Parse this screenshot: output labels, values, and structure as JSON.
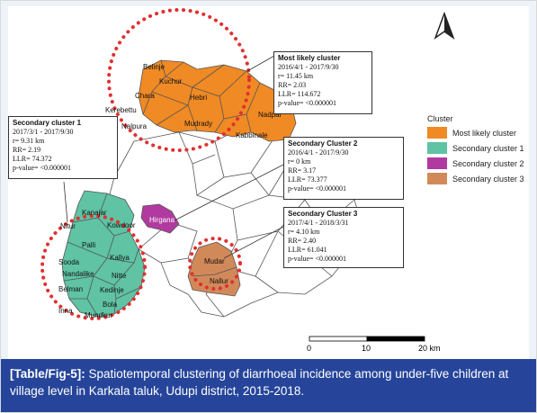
{
  "clusters": {
    "most_likely": {
      "title": "Most likely cluster",
      "period": "2016/4/1 - 2017/9/30",
      "radius": "r= 11.45 km",
      "rr": "RR= 2.03",
      "llr": "LLR= 114.672",
      "pvalue": "p-value= <0.000001"
    },
    "secondary_1": {
      "title": "Secondary cluster 1",
      "period": "2017/3/1 - 2017/9/30",
      "radius": "r= 9.31 km",
      "rr": "RR= 2.19",
      "llr": "LLR= 74.372",
      "pvalue": "p-value= <0.000001"
    },
    "secondary_2": {
      "title": "Secondary Cluster 2",
      "period": "2016/4/1 - 2017/9/30",
      "radius": "r= 0 km",
      "rr": "RR= 3.17",
      "llr": "LLR= 73.377",
      "pvalue": "p-value= <0.000001"
    },
    "secondary_3": {
      "title": "Secondary Cluster 3",
      "period": "2017/4/1 - 2018/3/31",
      "radius": "r= 4.10 km",
      "rr": "RR= 2.40",
      "llr": "LLR= 61.041",
      "pvalue": "p-value= <0.000001"
    }
  },
  "legend": {
    "title": "Cluster",
    "items": [
      {
        "label": "Most likely cluster",
        "color": "#f08a24"
      },
      {
        "label": "Secondary cluster 1",
        "color": "#5fc3a4"
      },
      {
        "label": "Secondary cluster 2",
        "color": "#b13aa0"
      },
      {
        "label": "Secondary cluster 3",
        "color": "#d2895a"
      }
    ]
  },
  "villages": {
    "most_likely": [
      "Belinje",
      "Kuchur",
      "Chara",
      "Hebri",
      "Kerebettu",
      "Nadpal",
      "Mudrady",
      "Nalpura",
      "Kabbinale"
    ],
    "secondary_1": [
      "Kanajar",
      "Nitur",
      "Kowdoor",
      "Palli",
      "Sooda",
      "Kallya",
      "Nandalike",
      "Nitte",
      "Belman",
      "Kedinje",
      "Bola",
      "Inna",
      "Mundkur"
    ],
    "secondary_2": [
      "Hirgana"
    ],
    "secondary_3": [
      "Mudar",
      "Nallur"
    ]
  },
  "scale_bar": {
    "ticks": [
      "0",
      "10",
      "20 km"
    ]
  },
  "north_arrow": {
    "label": "N"
  },
  "caption": {
    "tag": "[Table/Fig-5]:",
    "text": " Spatiotemporal clustering of diarrhoeal incidence among under-five children at village level in Karkala taluk, Udupi district, 2015-2018."
  },
  "colors": {
    "cluster_circle": "#e03030",
    "caption_bg": "#26459a",
    "boundary": "#555555"
  }
}
